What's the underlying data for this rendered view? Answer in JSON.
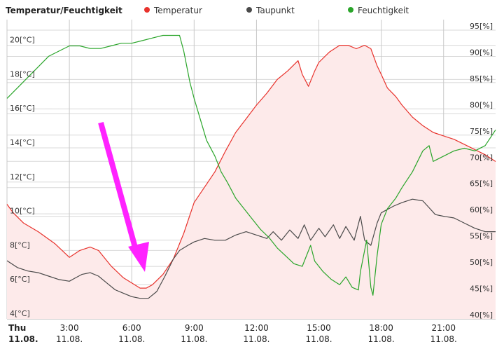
{
  "chart_data": {
    "type": "line",
    "title": "Temperatur/Feuchtigkeit",
    "colors": {
      "temperature": "#e8322c",
      "temperature_fill": "#fdeaea",
      "dewpoint": "#4a4a4a",
      "humidity": "#2aa52a",
      "arrow": "#ff22ff",
      "grid": "#d8d8d8",
      "grid_major": "#c8c8c8"
    },
    "legend": [
      {
        "name": "Temperatur",
        "color": "#e8322c"
      },
      {
        "name": "Taupunkt",
        "color": "#4a4a4a"
      },
      {
        "name": "Feuchtigkeit",
        "color": "#2aa52a"
      }
    ],
    "legend_position": "top",
    "grid": true,
    "x_range_hours": [
      0,
      23.5
    ],
    "x_ticks": [
      {
        "h": 0,
        "line1": "Thu",
        "line2": "11.08.",
        "bold": true
      },
      {
        "h": 3,
        "line1": "3:00",
        "line2": "11.08.",
        "bold": false
      },
      {
        "h": 6,
        "line1": "6:00",
        "line2": "11.08.",
        "bold": false
      },
      {
        "h": 9,
        "line1": "9:00",
        "line2": "11.08.",
        "bold": false
      },
      {
        "h": 12,
        "line1": "12:00",
        "line2": "11.08.",
        "bold": false
      },
      {
        "h": 15,
        "line1": "15:00",
        "line2": "11.08.",
        "bold": false
      },
      {
        "h": 18,
        "line1": "18:00",
        "line2": "11.08.",
        "bold": false
      },
      {
        "h": 21,
        "line1": "21:00",
        "line2": "11.08.",
        "bold": false
      }
    ],
    "y_left": {
      "unit": "[°C]",
      "range": [
        4,
        21.5
      ],
      "ticks": [
        4,
        6,
        8,
        10,
        12,
        14,
        16,
        18,
        20
      ]
    },
    "y_right": {
      "unit": "[%]",
      "range": [
        40,
        97
      ],
      "ticks": [
        40,
        45,
        50,
        55,
        60,
        65,
        70,
        75,
        80,
        85,
        90,
        95
      ]
    },
    "series": [
      {
        "name": "Temperatur",
        "axis": "left",
        "points": [
          [
            0,
            10.7
          ],
          [
            0.3,
            10.2
          ],
          [
            0.8,
            9.6
          ],
          [
            1.5,
            9.1
          ],
          [
            2.3,
            8.4
          ],
          [
            3,
            7.6
          ],
          [
            3.5,
            8
          ],
          [
            4,
            8.2
          ],
          [
            4.4,
            8
          ],
          [
            5,
            7.1
          ],
          [
            5.6,
            6.4
          ],
          [
            6,
            6.1
          ],
          [
            6.4,
            5.8
          ],
          [
            6.7,
            5.8
          ],
          [
            7,
            6
          ],
          [
            7.5,
            6.6
          ],
          [
            8,
            7.5
          ],
          [
            8.5,
            9
          ],
          [
            9,
            10.8
          ],
          [
            9.5,
            11.7
          ],
          [
            10,
            12.6
          ],
          [
            10.5,
            13.8
          ],
          [
            11,
            14.9
          ],
          [
            11.5,
            15.7
          ],
          [
            12,
            16.5
          ],
          [
            12.5,
            17.2
          ],
          [
            13,
            18
          ],
          [
            13.5,
            18.5
          ],
          [
            14,
            19.1
          ],
          [
            14.2,
            18.3
          ],
          [
            14.5,
            17.6
          ],
          [
            14.8,
            18.5
          ],
          [
            15,
            19
          ],
          [
            15.5,
            19.6
          ],
          [
            16,
            20
          ],
          [
            16.4,
            20
          ],
          [
            16.8,
            19.8
          ],
          [
            17.2,
            20
          ],
          [
            17.5,
            19.8
          ],
          [
            17.8,
            18.8
          ],
          [
            18,
            18.3
          ],
          [
            18.3,
            17.5
          ],
          [
            18.7,
            17
          ],
          [
            19,
            16.5
          ],
          [
            19.5,
            15.8
          ],
          [
            20,
            15.3
          ],
          [
            20.5,
            14.9
          ],
          [
            21,
            14.7
          ],
          [
            21.5,
            14.5
          ],
          [
            22,
            14.2
          ],
          [
            22.5,
            13.9
          ],
          [
            23,
            13.6
          ],
          [
            23.5,
            13.2
          ]
        ]
      },
      {
        "name": "Taupunkt",
        "axis": "left",
        "points": [
          [
            0,
            7.4
          ],
          [
            0.5,
            7
          ],
          [
            1,
            6.8
          ],
          [
            1.5,
            6.7
          ],
          [
            2,
            6.5
          ],
          [
            2.5,
            6.3
          ],
          [
            3,
            6.2
          ],
          [
            3.3,
            6.4
          ],
          [
            3.6,
            6.6
          ],
          [
            4,
            6.7
          ],
          [
            4.4,
            6.5
          ],
          [
            4.8,
            6.1
          ],
          [
            5.2,
            5.7
          ],
          [
            5.6,
            5.5
          ],
          [
            6,
            5.3
          ],
          [
            6.4,
            5.2
          ],
          [
            6.8,
            5.2
          ],
          [
            7.2,
            5.6
          ],
          [
            7.6,
            6.5
          ],
          [
            8,
            7.5
          ],
          [
            8.3,
            8
          ],
          [
            8.7,
            8.3
          ],
          [
            9,
            8.5
          ],
          [
            9.5,
            8.7
          ],
          [
            10,
            8.6
          ],
          [
            10.5,
            8.6
          ],
          [
            11,
            8.9
          ],
          [
            11.5,
            9.1
          ],
          [
            12,
            8.9
          ],
          [
            12.5,
            8.7
          ],
          [
            12.8,
            9.1
          ],
          [
            13.2,
            8.6
          ],
          [
            13.6,
            9.2
          ],
          [
            14,
            8.7
          ],
          [
            14.3,
            9.5
          ],
          [
            14.6,
            8.6
          ],
          [
            15,
            9.3
          ],
          [
            15.3,
            8.8
          ],
          [
            15.7,
            9.5
          ],
          [
            16,
            8.7
          ],
          [
            16.3,
            9.4
          ],
          [
            16.7,
            8.6
          ],
          [
            17,
            10
          ],
          [
            17.2,
            8.6
          ],
          [
            17.5,
            8.3
          ],
          [
            17.8,
            9.6
          ],
          [
            18,
            10.2
          ],
          [
            18.3,
            10.4
          ],
          [
            18.6,
            10.6
          ],
          [
            19,
            10.8
          ],
          [
            19.5,
            11
          ],
          [
            20,
            10.9
          ],
          [
            20.3,
            10.5
          ],
          [
            20.6,
            10.1
          ],
          [
            21,
            10
          ],
          [
            21.5,
            9.9
          ],
          [
            22,
            9.6
          ],
          [
            22.5,
            9.3
          ],
          [
            23,
            9.1
          ],
          [
            23.5,
            9.1
          ]
        ]
      },
      {
        "name": "Feuchtigkeit",
        "axis": "right",
        "points": [
          [
            0,
            82
          ],
          [
            0.5,
            84
          ],
          [
            1,
            86
          ],
          [
            1.5,
            88
          ],
          [
            2,
            90
          ],
          [
            2.5,
            91
          ],
          [
            3,
            92
          ],
          [
            3.5,
            92
          ],
          [
            4,
            91.5
          ],
          [
            4.5,
            91.5
          ],
          [
            5,
            92
          ],
          [
            5.5,
            92.5
          ],
          [
            6,
            92.5
          ],
          [
            6.5,
            93
          ],
          [
            7,
            93.5
          ],
          [
            7.5,
            94
          ],
          [
            8,
            94
          ],
          [
            8.3,
            94
          ],
          [
            8.5,
            91
          ],
          [
            8.8,
            85
          ],
          [
            9,
            82
          ],
          [
            9.3,
            78
          ],
          [
            9.6,
            74
          ],
          [
            10,
            71
          ],
          [
            10.3,
            68
          ],
          [
            10.6,
            66
          ],
          [
            11,
            63
          ],
          [
            11.4,
            61
          ],
          [
            11.8,
            59
          ],
          [
            12.2,
            57
          ],
          [
            12.6,
            55.5
          ],
          [
            13,
            53.5
          ],
          [
            13.4,
            52
          ],
          [
            13.8,
            50.5
          ],
          [
            14.2,
            50
          ],
          [
            14.6,
            54
          ],
          [
            14.8,
            51
          ],
          [
            15.2,
            49
          ],
          [
            15.6,
            47.5
          ],
          [
            16,
            46.5
          ],
          [
            16.3,
            48
          ],
          [
            16.6,
            46
          ],
          [
            16.9,
            45.5
          ],
          [
            17,
            49
          ],
          [
            17.3,
            55
          ],
          [
            17.5,
            46
          ],
          [
            17.6,
            44.5
          ],
          [
            17.8,
            52
          ],
          [
            18,
            58
          ],
          [
            18.3,
            61
          ],
          [
            18.7,
            63
          ],
          [
            19,
            65
          ],
          [
            19.5,
            68
          ],
          [
            20,
            72
          ],
          [
            20.3,
            73
          ],
          [
            20.5,
            70
          ],
          [
            21,
            71
          ],
          [
            21.5,
            72
          ],
          [
            22,
            72.5
          ],
          [
            22.5,
            72
          ],
          [
            23,
            73
          ],
          [
            23.5,
            76
          ]
        ]
      }
    ]
  }
}
